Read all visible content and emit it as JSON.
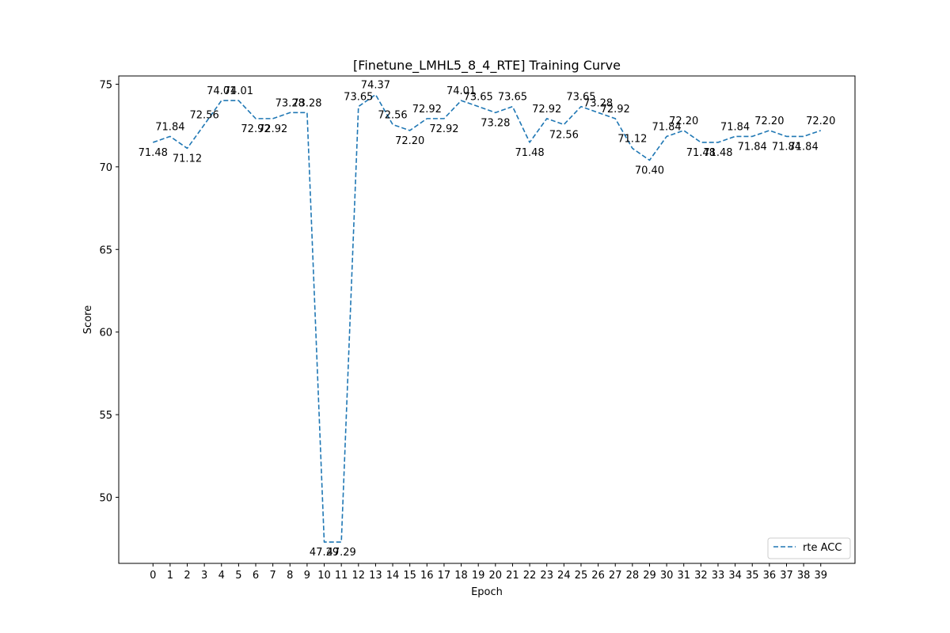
{
  "chart_data": {
    "type": "line",
    "title": "[Finetune_LMHL5_8_4_RTE] Training Curve",
    "xlabel": "Epoch",
    "ylabel": "Score",
    "x": [
      0,
      1,
      2,
      3,
      4,
      5,
      6,
      7,
      8,
      9,
      10,
      11,
      12,
      13,
      14,
      15,
      16,
      17,
      18,
      19,
      20,
      21,
      22,
      23,
      24,
      25,
      26,
      27,
      28,
      29,
      30,
      31,
      32,
      33,
      34,
      35,
      36,
      37,
      38,
      39
    ],
    "series": [
      {
        "name": "rte ACC",
        "color": "#1f77b4",
        "line_style": "dashed",
        "values": [
          71.48,
          71.84,
          71.12,
          72.56,
          74.01,
          74.01,
          72.92,
          72.92,
          73.28,
          73.28,
          47.29,
          47.29,
          73.65,
          74.37,
          72.56,
          72.2,
          72.92,
          72.92,
          74.01,
          73.65,
          73.28,
          73.65,
          71.48,
          72.92,
          72.56,
          73.65,
          73.28,
          72.92,
          71.12,
          70.4,
          71.84,
          72.2,
          71.48,
          71.48,
          71.84,
          71.84,
          72.2,
          71.84,
          71.84,
          72.2
        ],
        "labels": [
          "71.48",
          "71.84",
          "71.12",
          "72.56",
          "74.01",
          "74.01",
          "72.92",
          "72.92",
          "73.28",
          "73.28",
          "47.29",
          "47.29",
          "73.65",
          "74.37",
          "72.56",
          "72.20",
          "72.92",
          "72.92",
          "74.01",
          "73.65",
          "73.28",
          "73.65",
          "71.48",
          "72.92",
          "72.56",
          "73.65",
          "73.28",
          "72.92",
          "71.12",
          "70.40",
          "71.84",
          "72.20",
          "71.48",
          "71.48",
          "71.84",
          "71.84",
          "72.20",
          "71.84",
          "71.84",
          "72.20"
        ]
      }
    ],
    "xlim": [
      -2,
      41
    ],
    "ylim": [
      46.0,
      75.5
    ],
    "yticks": [
      50,
      55,
      60,
      65,
      70,
      75
    ],
    "grid": false,
    "legend_position": "lower-right"
  }
}
